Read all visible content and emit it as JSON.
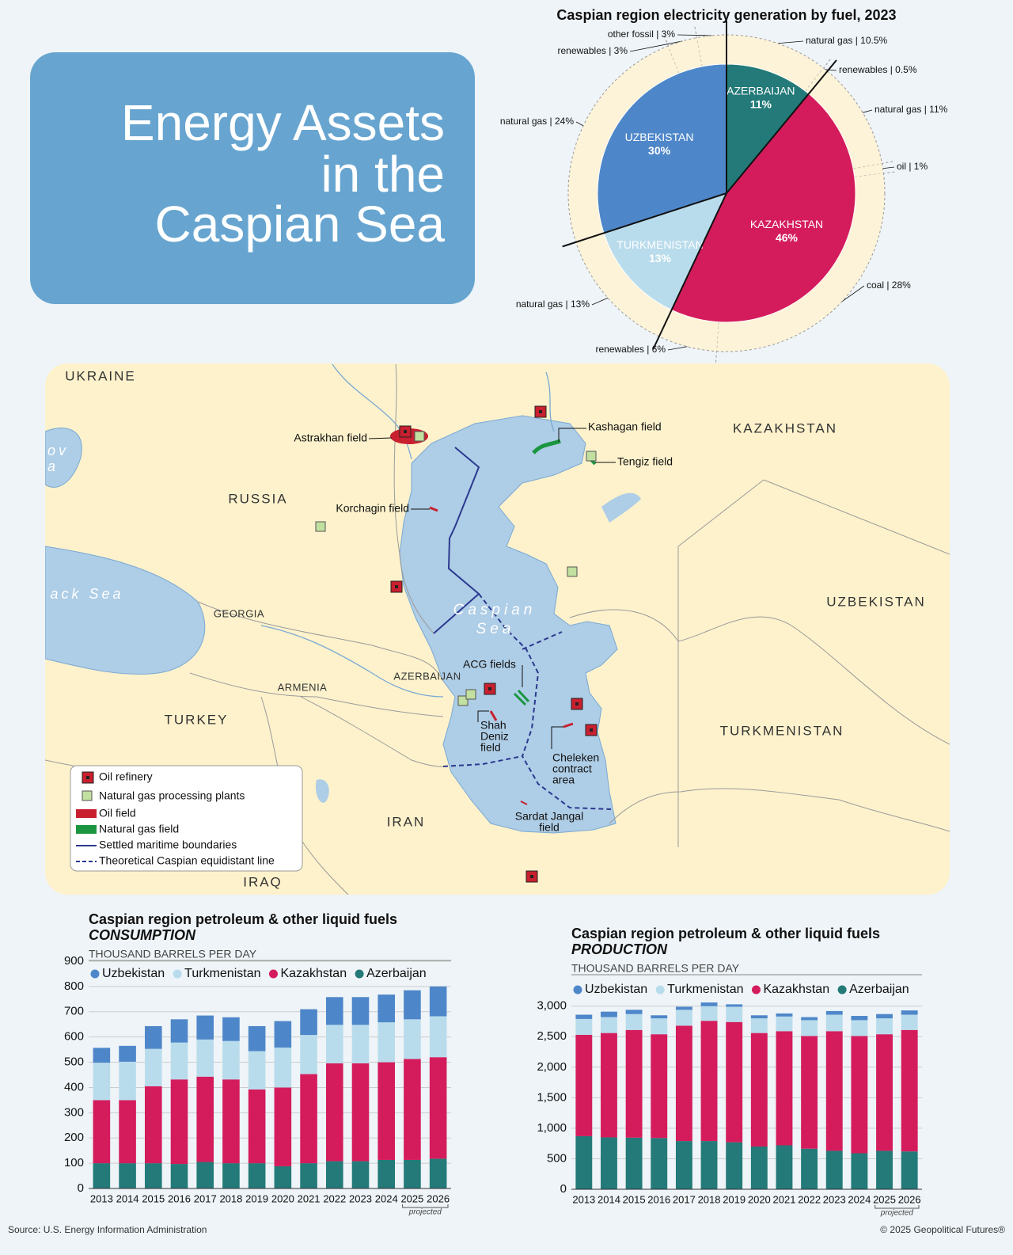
{
  "header": {
    "title_lines": [
      "Energy Assets",
      "in the",
      "Caspian Sea"
    ]
  },
  "chart_data": [
    {
      "type": "pie",
      "title": "Caspian region electricity generation by fuel, 2023",
      "categories": [
        "AZERBAIJAN",
        "KAZAKHSTAN",
        "TURKMENISTAN",
        "UZBEKISTAN"
      ],
      "values": [
        11,
        46,
        13,
        30
      ],
      "value_labels": [
        "11%",
        "46%",
        "13%",
        "30%"
      ],
      "colors": [
        "#237a78",
        "#d41c5c",
        "#b9dcec",
        "#4e87c9"
      ],
      "ring": {
        "color": "#fdf3d8",
        "values": [
          10.5,
          0.5,
          11,
          1,
          28,
          6,
          13,
          24,
          3,
          3
        ],
        "value_labels": [
          "natural gas | 10.5%",
          "renewables | 0.5%",
          "natural gas | 11%",
          "oil | 1%",
          "coal | 28%",
          "renewables | 6%",
          "natural gas | 13%",
          "natural gas | 24%",
          "renewables | 3%",
          "other fossil | 3%"
        ]
      }
    },
    {
      "type": "bar",
      "stacked": true,
      "title": "Caspian region petroleum & other liquid fuels",
      "subtitle": "CONSUMPTION",
      "unit": "THOUSAND BARRELS PER DAY",
      "note": "projected",
      "categories": [
        "2013",
        "2014",
        "2015",
        "2016",
        "2017",
        "2018",
        "2019",
        "2020",
        "2021",
        "2022",
        "2023",
        "2024",
        "2025",
        "2026"
      ],
      "series": [
        {
          "name": "Uzbekistan",
          "color": "#4e87c9",
          "values": [
            59,
            63,
            90,
            92,
            95,
            94,
            99,
            105,
            102,
            110,
            110,
            110,
            115,
            118
          ]
        },
        {
          "name": "Turkmenistan",
          "color": "#b9dcec",
          "values": [
            148,
            152,
            148,
            146,
            147,
            152,
            152,
            158,
            155,
            152,
            152,
            158,
            157,
            162
          ]
        },
        {
          "name": "Kazakhstan",
          "color": "#d41c5c",
          "values": [
            250,
            250,
            305,
            335,
            338,
            332,
            292,
            312,
            353,
            388,
            388,
            387,
            400,
            402
          ]
        },
        {
          "name": "Azerbaijan",
          "color": "#237a78",
          "values": [
            100,
            100,
            100,
            97,
            105,
            100,
            100,
            88,
            100,
            108,
            108,
            113,
            113,
            118
          ]
        }
      ],
      "ylim": [
        0,
        900
      ],
      "yticks": [
        0,
        100,
        200,
        300,
        400,
        500,
        600,
        700,
        800,
        900
      ],
      "grid": true
    },
    {
      "type": "bar",
      "stacked": true,
      "title": "Caspian region petroleum & other liquid fuels",
      "subtitle": "PRODUCTION",
      "unit": "THOUSAND BARRELS PER DAY",
      "note": "projected",
      "categories": [
        "2013",
        "2014",
        "2015",
        "2016",
        "2017",
        "2018",
        "2019",
        "2020",
        "2021",
        "2022",
        "2023",
        "2024",
        "2025",
        "2026"
      ],
      "series": [
        {
          "name": "Uzbekistan",
          "color": "#4e87c9",
          "values": [
            70,
            90,
            70,
            50,
            50,
            60,
            40,
            50,
            50,
            50,
            60,
            70,
            70,
            70
          ]
        },
        {
          "name": "Turkmenistan",
          "color": "#b9dcec",
          "values": [
            260,
            260,
            260,
            260,
            260,
            240,
            250,
            240,
            240,
            260,
            270,
            260,
            260,
            250
          ]
        },
        {
          "name": "Kazakhstan",
          "color": "#d41c5c",
          "values": [
            1660,
            1710,
            1765,
            1700,
            1890,
            1970,
            1970,
            1860,
            1870,
            1845,
            1960,
            1920,
            1910,
            1990
          ]
        },
        {
          "name": "Azerbaijan",
          "color": "#237a78",
          "values": [
            870,
            850,
            845,
            840,
            790,
            790,
            770,
            700,
            720,
            665,
            630,
            590,
            630,
            620
          ]
        }
      ],
      "ylim": [
        0,
        3100
      ],
      "yticks": [
        0,
        500,
        {
          "value": 1000,
          "label": "1,000"
        },
        {
          "value": 1500,
          "label": "1,500"
        },
        {
          "value": 2000,
          "label": "2,000"
        },
        {
          "value": 2500,
          "label": "2,500"
        },
        {
          "value": 3000,
          "label": "3,000"
        }
      ],
      "grid": true
    }
  ],
  "map": {
    "countries": [
      "UKRAINE",
      "RUSSIA",
      "KAZAKHSTAN",
      "UZBEKISTAN",
      "TURKMENISTAN",
      "IRAN",
      "IRAQ",
      "TURKEY",
      "GEORGIA",
      "ARMENIA",
      "AZERBAIJAN"
    ],
    "seas": [
      [
        "Caspian",
        "Sea"
      ],
      [
        "ack Sea"
      ],
      [
        "ov",
        "a"
      ]
    ],
    "fields": [
      [
        "Astrakhan field"
      ],
      [
        "Kashagan field"
      ],
      [
        "Tengiz field"
      ],
      [
        "Korchagin field"
      ],
      [
        "ACG fields"
      ],
      [
        "Shah",
        "Deniz",
        "field"
      ],
      [
        "Cheleken",
        "contract",
        "area"
      ],
      [
        "Sardat Jangal",
        "field"
      ]
    ],
    "legend": [
      "Oil refinery",
      "Natural gas processing plants",
      "Oil field",
      "Natural gas field",
      "Settled maritime boundaries",
      "Theoretical Caspian equidistant line"
    ]
  },
  "footer": {
    "source": "Source: U.S. Energy Information Administration",
    "copyright": "© 2025 Geopolitical Futures®"
  }
}
